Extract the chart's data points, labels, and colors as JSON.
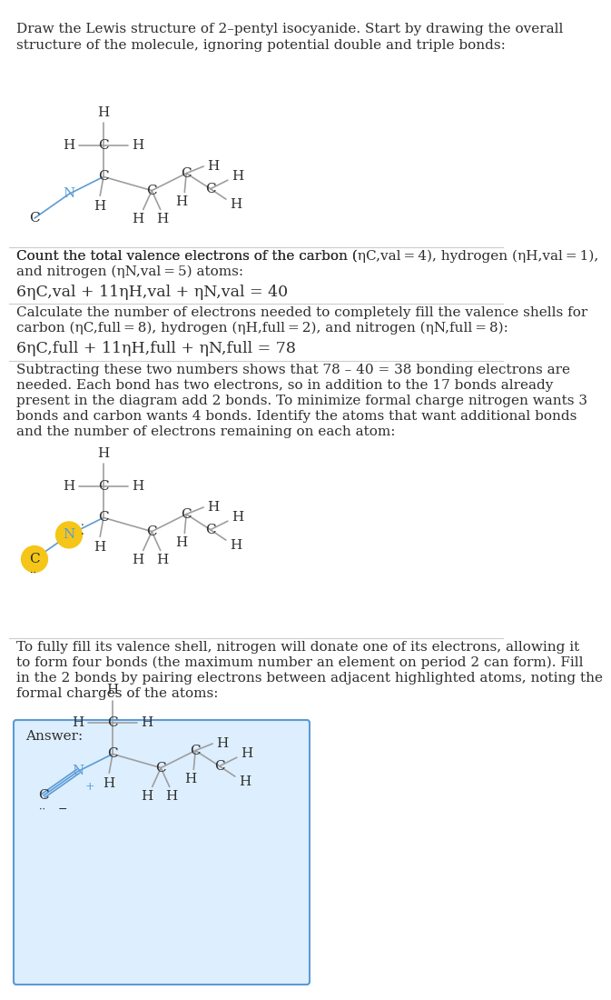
{
  "bg_color": "#ffffff",
  "text_color": "#2d2d2d",
  "bond_color": "#9e9e9e",
  "blue_bond_color": "#5b9bd5",
  "nitrogen_color": "#5b9bd5",
  "highlight_c_color": "#f5c518",
  "highlight_n_color": "#f5c518",
  "answer_box_color": "#ddeeff",
  "answer_box_border": "#5b9bd5",
  "section1_title": "Draw the Lewis structure of 2–pentyl isocyanide. Start by drawing the overall\nstructure of the molecule, ignoring potential double and triple bonds:",
  "section2_title": "Count the total valence electrons of the carbon (ηᴄ,val = 4), hydrogen (ηH,val = 1),\nand nitrogen (ηN,val = 5) atoms:",
  "section2_eq": "6ηC,val + 11ηH,val + ηN,val = 40",
  "section3_title": "Calculate the number of electrons needed to completely fill the valence shells for\ncarbon (ηC,full = 8), hydrogen (ηH,full = 2), and nitrogen (ηN,full = 8):",
  "section3_eq": "6ηC,full + 11ηH,full + ηN,full = 78",
  "section4_title": "Subtracting these two numbers shows that 78 – 40 = 38 bonding electrons are\nneeded. Each bond has two electrons, so in addition to the 17 bonds already\npresent in the diagram add 2 bonds. To minimize formal charge nitrogen wants 3\nbonds and carbon wants 4 bonds. Identify the atoms that want additional bonds\nand the number of electrons remaining on each atom:",
  "section5_title": "To fully fill its valence shell, nitrogen will donate one of its electrons, allowing it\nto form four bonds (the maximum number an element on period 2 can form). Fill\nin the 2 bonds by pairing electrons between adjacent highlighted atoms, noting the\nformal charges of the atoms:",
  "answer_label": "Answer:"
}
